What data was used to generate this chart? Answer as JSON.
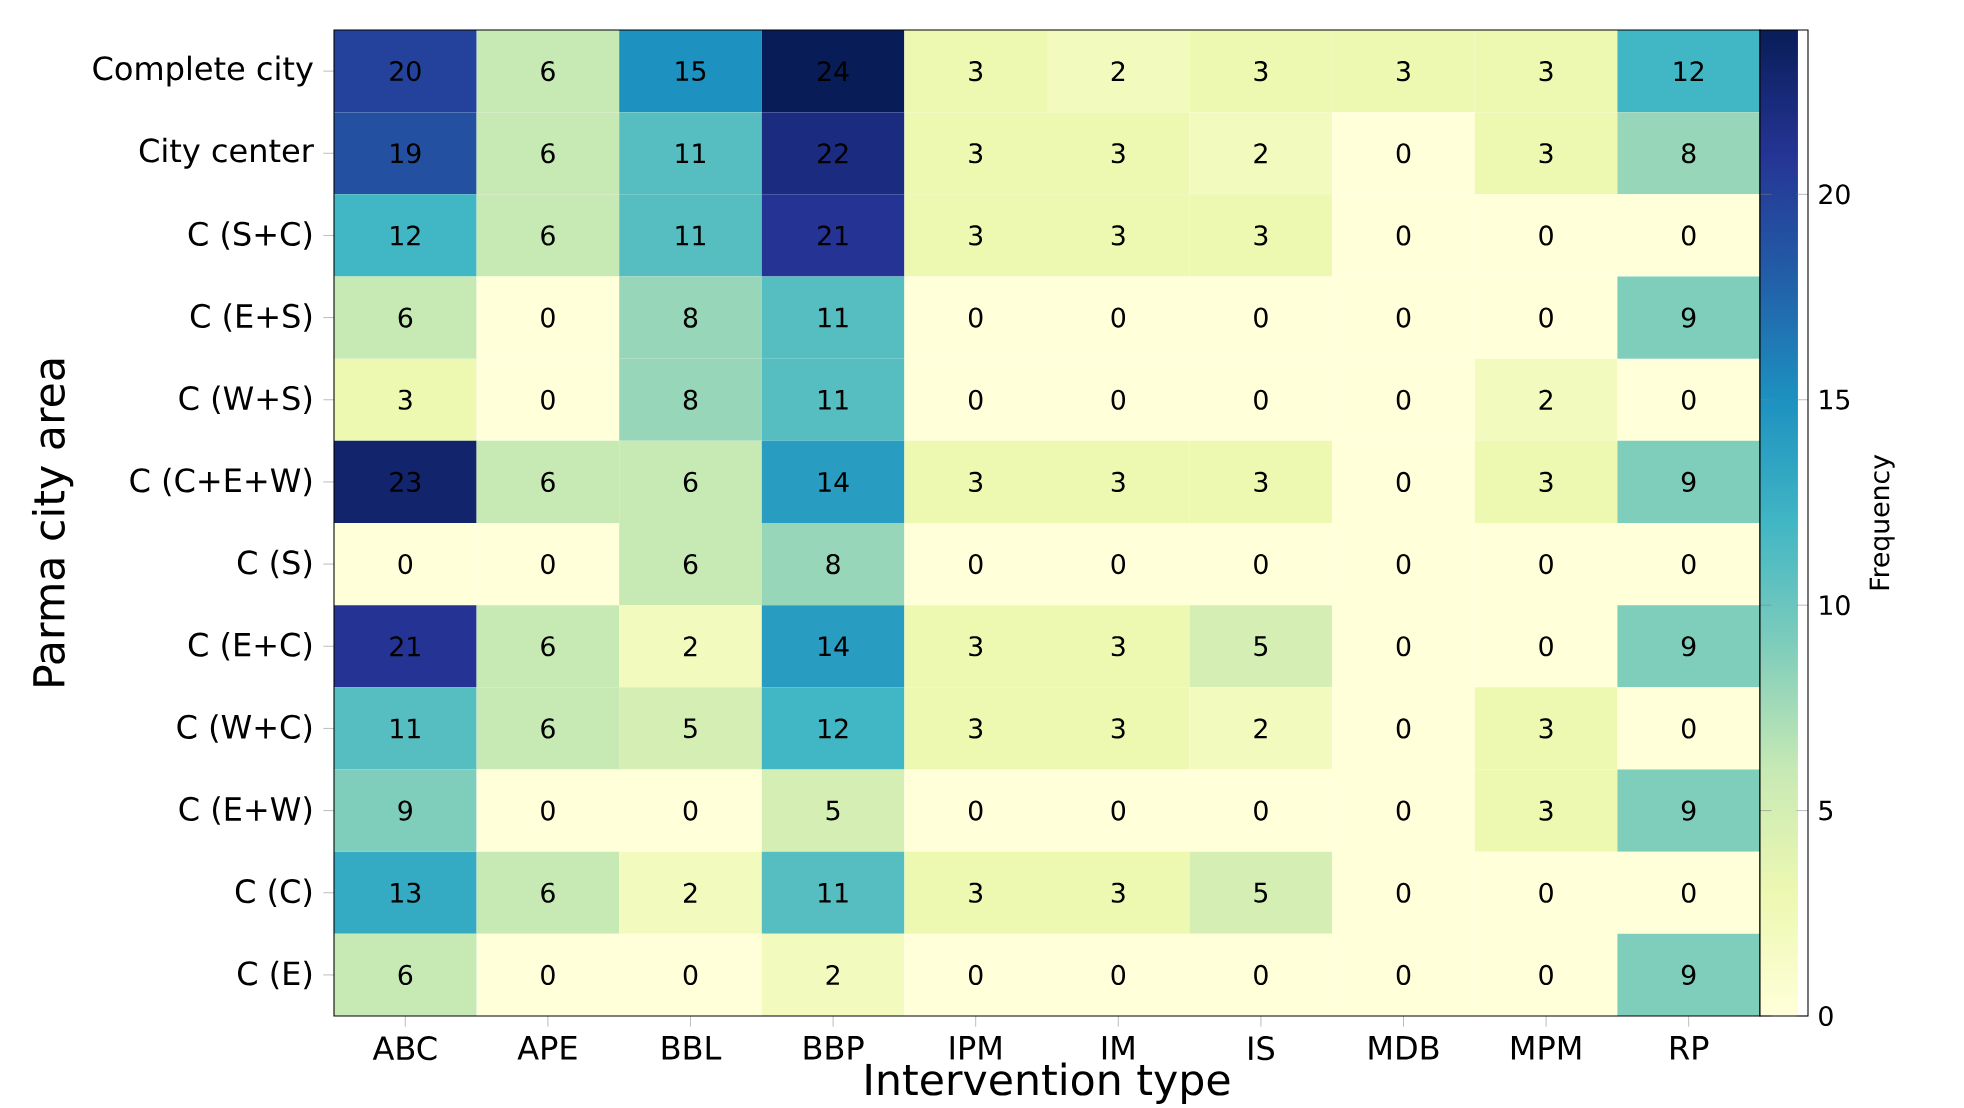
{
  "chart_data": {
    "type": "heatmap",
    "xlabel": "Intervention type",
    "ylabel": "Parma city area",
    "clabel": "Frequency",
    "categories": [
      "ABC",
      "APE",
      "BBL",
      "BBP",
      "IPM",
      "IM",
      "IS",
      "MDB",
      "MPM",
      "RP"
    ],
    "y_categories": [
      "Complete city",
      "City center",
      "C (S+C)",
      "C (E+S)",
      "C (W+S)",
      "C (C+E+W)",
      "C (S)",
      "C (E+C)",
      "C (W+C)",
      "C (E+W)",
      "C (C)",
      "C (E)"
    ],
    "cells": [
      [
        20,
        6,
        15,
        24,
        3,
        2,
        3,
        3,
        3,
        12
      ],
      [
        19,
        6,
        11,
        22,
        3,
        3,
        2,
        0,
        3,
        8
      ],
      [
        12,
        6,
        11,
        21,
        3,
        3,
        3,
        0,
        0,
        0
      ],
      [
        6,
        0,
        8,
        11,
        0,
        0,
        0,
        0,
        0,
        9
      ],
      [
        3,
        0,
        8,
        11,
        0,
        0,
        0,
        0,
        2,
        0
      ],
      [
        23,
        6,
        6,
        14,
        3,
        3,
        3,
        0,
        3,
        9
      ],
      [
        0,
        0,
        6,
        8,
        0,
        0,
        0,
        0,
        0,
        0
      ],
      [
        21,
        6,
        2,
        14,
        3,
        3,
        5,
        0,
        0,
        9
      ],
      [
        11,
        6,
        5,
        12,
        3,
        3,
        2,
        0,
        3,
        0
      ],
      [
        9,
        0,
        0,
        5,
        0,
        0,
        0,
        0,
        3,
        9
      ],
      [
        13,
        6,
        2,
        11,
        3,
        3,
        5,
        0,
        0,
        0
      ],
      [
        6,
        0,
        0,
        2,
        0,
        0,
        0,
        0,
        0,
        9
      ]
    ],
    "data_labels": true,
    "clim": [
      0,
      24
    ],
    "cticks": [
      0,
      5,
      10,
      15,
      20
    ]
  }
}
